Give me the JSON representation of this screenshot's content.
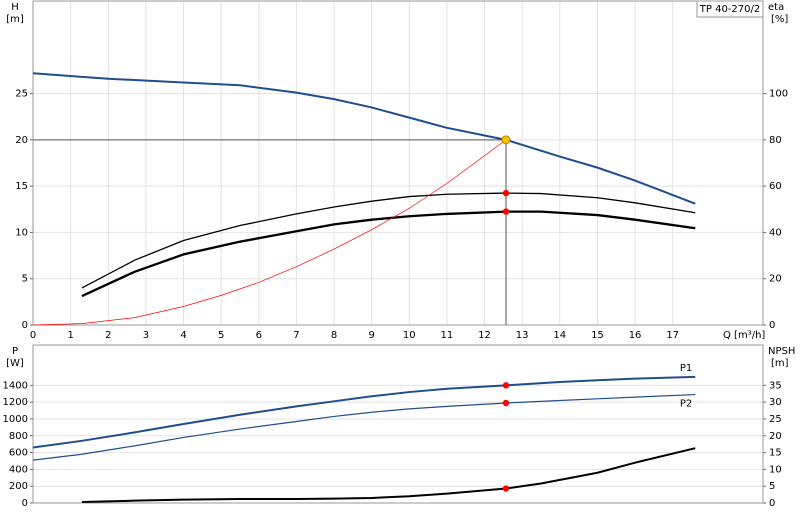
{
  "chart_data": [
    {
      "type": "line",
      "title": "TP 40-270/2",
      "ylabel": "H",
      "yunit": "[m]",
      "y2label": "eta",
      "y2unit": "[%]",
      "xlabel": "Q [m³/h]",
      "xlim": [
        0,
        19.4
      ],
      "xticks": [
        0,
        1,
        2,
        3,
        4,
        5,
        6,
        7,
        8,
        9,
        10,
        11,
        12,
        13,
        14,
        15,
        16,
        17
      ],
      "ylim": [
        0,
        35
      ],
      "yticks": [
        0,
        5,
        10,
        15,
        20,
        25
      ],
      "y2lim": [
        0,
        140
      ],
      "y2ticks": [
        0,
        20,
        40,
        60,
        80,
        100
      ],
      "grid": true,
      "series": [
        {
          "color": "#1f4e8c",
          "x": [
            0,
            1.3,
            2,
            4,
            5.5,
            7,
            8,
            9,
            10,
            11,
            12.57,
            14,
            15,
            16,
            17.6
          ],
          "values": [
            27.2,
            26.8,
            26.6,
            26.2,
            25.9,
            25.1,
            24.4,
            23.5,
            22.4,
            21.3,
            20,
            18.2,
            17,
            15.6,
            13.1
          ]
        },
        {
          "color": "#000000",
          "axis": "y2",
          "x": [
            1.3,
            2.7,
            4,
            5.5,
            7,
            8,
            9,
            10,
            11,
            12.57,
            13.5,
            15,
            16,
            17.6
          ],
          "values": [
            16,
            28,
            36.5,
            43,
            48,
            51,
            53.5,
            55.5,
            56.5,
            57,
            56.8,
            55,
            52.8,
            48.5
          ]
        },
        {
          "color": "#000000",
          "axis": "y2",
          "x": [
            1.3,
            2.7,
            4,
            5.5,
            7,
            8,
            9,
            10,
            11,
            12.57,
            13.5,
            15,
            16,
            17.6
          ],
          "values": [
            12.5,
            23,
            30.5,
            36,
            40.5,
            43.5,
            45.5,
            47,
            48,
            49,
            49,
            47.5,
            45.5,
            41.8
          ]
        },
        {
          "color": "#ff0000",
          "x": [
            0,
            1.3,
            2.7,
            4,
            5,
            6,
            7,
            8,
            9,
            10,
            11,
            12.57
          ],
          "values": [
            0,
            0.15,
            0.8,
            2,
            3.2,
            4.6,
            6.3,
            8.2,
            10.3,
            12.6,
            15.3,
            20
          ]
        }
      ],
      "operating_point": {
        "x": 12.57,
        "y": 20,
        "color": "#f5c400"
      },
      "points": [
        {
          "x": 12.57,
          "y": 57,
          "axis": "y2",
          "color": "#ff0000"
        },
        {
          "x": 12.57,
          "y": 49,
          "axis": "y2",
          "color": "#ff0000"
        }
      ]
    },
    {
      "type": "line",
      "ylabel": "P",
      "yunit": "[W]",
      "y2label": "NPSH",
      "y2unit": "[m]",
      "xlim": [
        0,
        19.4
      ],
      "ylim": [
        0,
        1880
      ],
      "yticks": [
        0,
        200,
        400,
        600,
        800,
        1000,
        1200,
        1400
      ],
      "y2lim": [
        0,
        47
      ],
      "y2ticks": [
        0,
        5,
        10,
        15,
        20,
        25,
        30,
        35
      ],
      "grid": true,
      "series": [
        {
          "name": "P1",
          "color": "#1f4e8c",
          "x": [
            0,
            1.3,
            2.7,
            4,
            5.5,
            7,
            8,
            9,
            10,
            11,
            12.57,
            14,
            15,
            16,
            17.6
          ],
          "values": [
            660,
            740,
            840,
            940,
            1050,
            1150,
            1210,
            1270,
            1320,
            1360,
            1400,
            1440,
            1460,
            1480,
            1500
          ]
        },
        {
          "name": "P2",
          "color": "#1f4e8c",
          "x": [
            0,
            1.3,
            2.7,
            4,
            5.5,
            7,
            8,
            9,
            10,
            11,
            12.57,
            14,
            15,
            16,
            17.6
          ],
          "values": [
            510,
            580,
            680,
            780,
            880,
            970,
            1030,
            1080,
            1120,
            1150,
            1190,
            1220,
            1240,
            1260,
            1290
          ]
        },
        {
          "color": "#000000",
          "axis": "y2",
          "x": [
            1.3,
            2.7,
            4,
            5.5,
            7,
            8,
            9,
            10,
            11,
            12.57,
            13.5,
            15,
            16,
            17.6
          ],
          "values": [
            0.3,
            0.7,
            1,
            1.2,
            1.2,
            1.3,
            1.5,
            2,
            2.8,
            4.3,
            5.8,
            9,
            12,
            16.3
          ]
        }
      ],
      "points": [
        {
          "x": 12.57,
          "y": 1400,
          "color": "#ff0000"
        },
        {
          "x": 12.57,
          "y": 1190,
          "color": "#ff0000"
        },
        {
          "x": 12.57,
          "y": 4.3,
          "axis": "y2",
          "color": "#ff0000"
        }
      ]
    }
  ]
}
